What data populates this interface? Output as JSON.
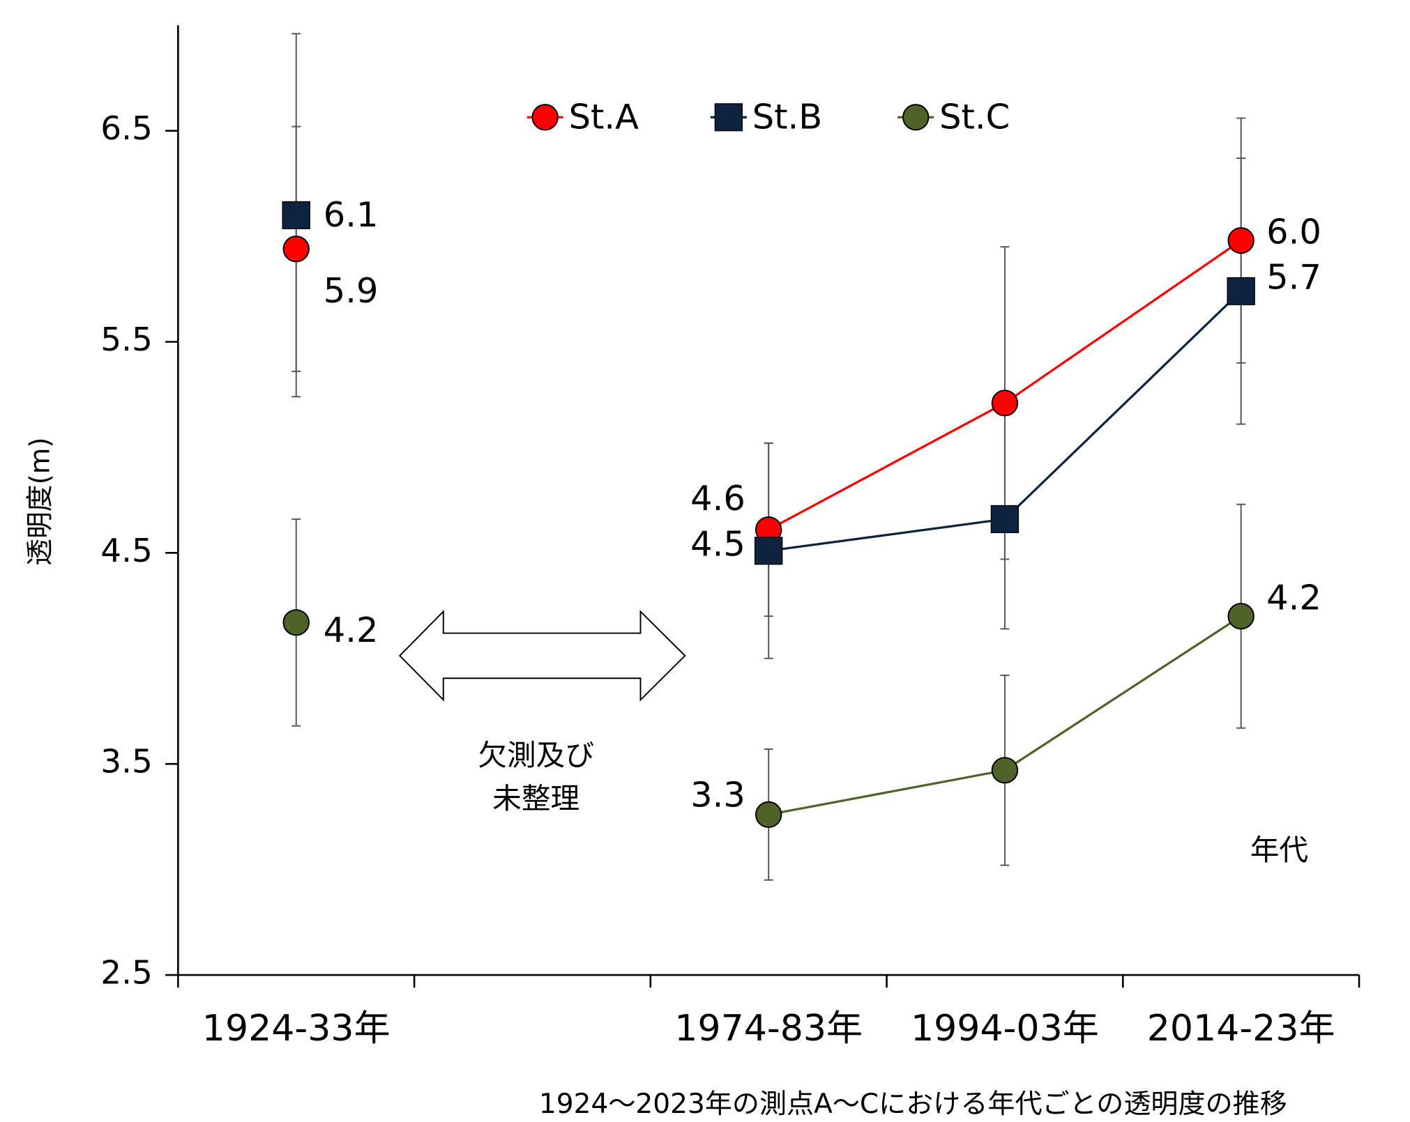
{
  "chart_data": {
    "type": "line",
    "y_label": "透明度(m)",
    "x_label": "年代",
    "caption": "1924～2023年の測点A～Cにおける年代ごとの透明度の推移",
    "annotation": [
      "欠測及び",
      "未整理"
    ],
    "categories": [
      "1924-33年",
      null,
      "1974-83年",
      "1994-03年",
      "2014-23年"
    ],
    "ylim": [
      2.5,
      7.0
    ],
    "yticks": [
      2.5,
      3.5,
      4.5,
      5.5,
      6.5
    ],
    "grid": false,
    "legend": "top",
    "series": [
      {
        "name": "St.A",
        "color": "#ff0000",
        "marker": "circle",
        "values": [
          5.94,
          null,
          4.61,
          5.21,
          5.98
        ],
        "errors": [
          0.58,
          null,
          0.41,
          0.74,
          0.58
        ],
        "value_labels": [
          "5.9",
          null,
          "4.6",
          null,
          "6.0"
        ]
      },
      {
        "name": "St.B",
        "color": "#0d2340",
        "marker": "square",
        "values": [
          6.1,
          null,
          4.51,
          4.66,
          5.74
        ],
        "errors": [
          0.86,
          null,
          0.51,
          0.52,
          0.63
        ],
        "value_labels": [
          "6.1",
          null,
          "4.5",
          null,
          "5.7"
        ]
      },
      {
        "name": "St.C",
        "color": "#4f6228",
        "marker": "circle",
        "values": [
          4.17,
          null,
          3.26,
          3.47,
          4.2
        ],
        "errors": [
          0.49,
          null,
          0.31,
          0.45,
          0.53
        ],
        "value_labels": [
          "4.2",
          null,
          "3.3",
          null,
          "4.2"
        ]
      }
    ]
  }
}
